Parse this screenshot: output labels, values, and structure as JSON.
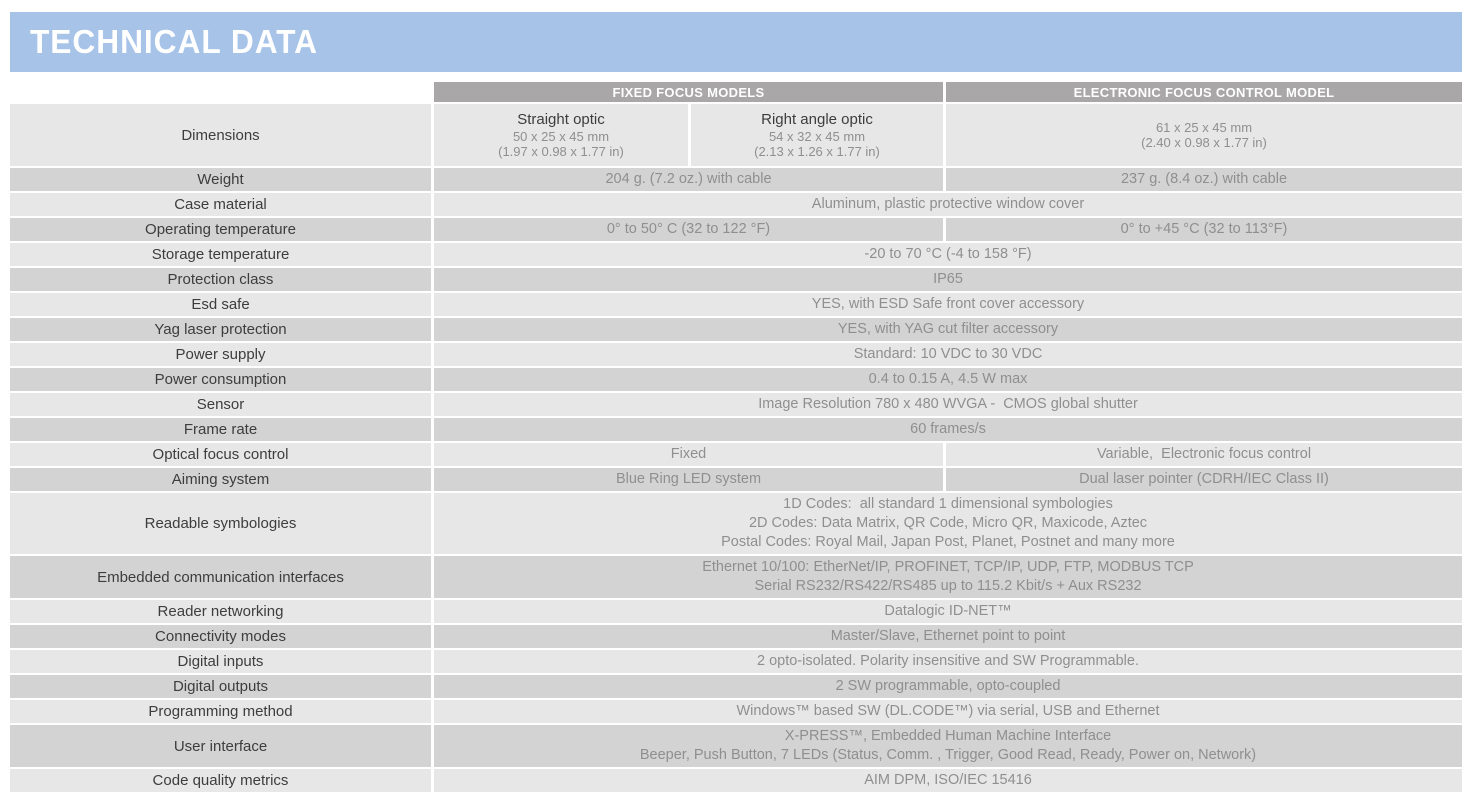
{
  "title": "TECHNICAL DATA",
  "colors": {
    "accent_blue": "#a7c3e8",
    "header_gray": "#a9a7a7",
    "row_light": "#e7e7e7",
    "row_dark": "#d3d3d3",
    "label_text": "#3d3d3d",
    "value_text": "#8f8f8f"
  },
  "table": {
    "col_headers": [
      "FIXED FOCUS MODELS",
      "ELECTRONIC FOCUS CONTROL MODEL"
    ],
    "rows": [
      {
        "label": "Dimensions",
        "type": "dims",
        "straight": {
          "title": "Straight optic",
          "lines": [
            "50 x 25 x 45 mm",
            "(1.97 x 0.98 x 1.77 in)"
          ]
        },
        "rightangle": {
          "title": "Right angle optic",
          "lines": [
            "54 x 32 x 45 mm",
            "(2.13 x 1.26 x 1.77 in)"
          ]
        },
        "electronic": {
          "title": "",
          "lines": [
            "61 x 25 x 45 mm",
            "(2.40 x 0.98 x 1.77 in)"
          ]
        }
      },
      {
        "label": "Weight",
        "type": "split",
        "fixed": [
          "204 g. (7.2 oz.) with cable"
        ],
        "electronic": [
          "237 g. (8.4 oz.) with cable"
        ]
      },
      {
        "label": "Case material",
        "type": "full",
        "value": [
          "Aluminum, plastic protective window cover"
        ]
      },
      {
        "label": "Operating temperature",
        "type": "split",
        "fixed": [
          "0° to 50° C (32 to 122 °F)"
        ],
        "electronic": [
          "0° to +45 °C (32 to 113°F)"
        ]
      },
      {
        "label": "Storage temperature",
        "type": "full",
        "value": [
          "-20 to 70 °C (-4 to 158 °F)"
        ]
      },
      {
        "label": "Protection class",
        "type": "full",
        "value": [
          "IP65"
        ]
      },
      {
        "label": "Esd safe",
        "type": "full",
        "value": [
          "YES, with ESD Safe front cover accessory"
        ]
      },
      {
        "label": "Yag laser protection",
        "type": "full",
        "value": [
          "YES, with YAG cut filter accessory"
        ]
      },
      {
        "label": "Power supply",
        "type": "full",
        "value": [
          "Standard: 10 VDC to 30 VDC"
        ]
      },
      {
        "label": "Power consumption",
        "type": "full",
        "value": [
          "0.4 to 0.15 A, 4.5 W max"
        ]
      },
      {
        "label": "Sensor",
        "type": "full",
        "value": [
          "Image Resolution 780 x 480 WVGA -  CMOS global shutter"
        ]
      },
      {
        "label": "Frame rate",
        "type": "full",
        "value": [
          "60 frames/s"
        ]
      },
      {
        "label": "Optical focus control",
        "type": "split",
        "fixed": [
          "Fixed"
        ],
        "electronic": [
          "Variable,  Electronic focus control"
        ]
      },
      {
        "label": "Aiming system",
        "type": "split",
        "fixed": [
          "Blue Ring LED system"
        ],
        "electronic": [
          "Dual laser pointer (CDRH/IEC Class II)"
        ]
      },
      {
        "label": "Readable symbologies",
        "type": "full",
        "value": [
          "1D Codes:  all standard 1 dimensional symbologies",
          "2D Codes: Data Matrix, QR Code, Micro QR, Maxicode, Aztec",
          "Postal Codes: Royal Mail, Japan Post, Planet, Postnet and many more"
        ]
      },
      {
        "label": "Embedded communication interfaces",
        "type": "full",
        "value": [
          "Ethernet 10/100: EtherNet/IP, PROFINET, TCP/IP, UDP, FTP, MODBUS TCP",
          "Serial RS232/RS422/RS485 up to 115.2 Kbit/s + Aux RS232"
        ]
      },
      {
        "label": "Reader networking",
        "type": "full",
        "value": [
          "Datalogic ID-NET™"
        ]
      },
      {
        "label": "Connectivity modes",
        "type": "full",
        "value": [
          "Master/Slave, Ethernet point to point"
        ]
      },
      {
        "label": "Digital inputs",
        "type": "full",
        "value": [
          "2 opto-isolated. Polarity insensitive and SW Programmable."
        ]
      },
      {
        "label": "Digital outputs",
        "type": "full",
        "value": [
          "2 SW programmable, opto-coupled"
        ]
      },
      {
        "label": "Programming method",
        "type": "full",
        "value": [
          "Windows™ based SW (DL.CODE™) via serial, USB and Ethernet"
        ]
      },
      {
        "label": "User interface",
        "type": "full",
        "value": [
          "X-PRESS™, Embedded Human Machine Interface",
          "Beeper, Push Button, 7 LEDs (Status, Comm. , Trigger, Good Read, Ready, Power on, Network)"
        ]
      },
      {
        "label": "Code quality metrics",
        "type": "full",
        "value": [
          "AIM DPM, ISO/IEC 15416"
        ]
      }
    ]
  }
}
